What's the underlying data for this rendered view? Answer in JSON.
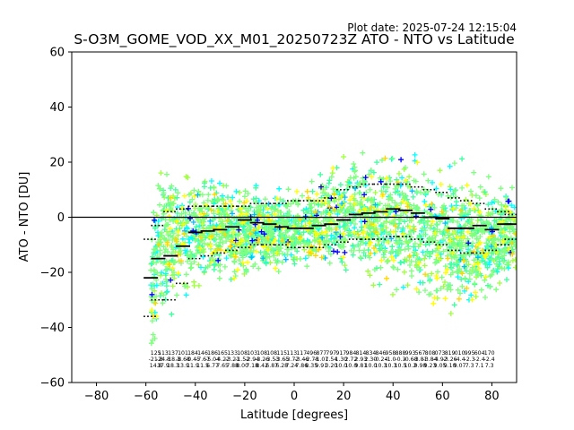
{
  "chart_data": {
    "type": "scatter",
    "title": "S-O3M_GOME_VOD_XX_M01_20250723Z ATO - NTO vs Latitude",
    "subtitle": "Plot date: 2025-07-24 12:15:04",
    "xlabel": "Latitude [degrees]",
    "ylabel": "ATO - NTO [DU]",
    "xlim": [
      -90,
      90
    ],
    "ylim": [
      -60,
      60
    ],
    "xticks": [
      -80,
      -60,
      -40,
      -20,
      0,
      20,
      40,
      60,
      80
    ],
    "yticks": [
      -60,
      -40,
      -20,
      0,
      20,
      40,
      60
    ],
    "zero_line": 0,
    "grid": false,
    "marker": "+",
    "scatter_envelope": {
      "lat": [
        -58,
        -55,
        -50,
        -45,
        -40,
        -35,
        -30,
        -25,
        -20,
        -15,
        -10,
        -5,
        0,
        5,
        10,
        15,
        20,
        25,
        30,
        35,
        40,
        45,
        50,
        55,
        60,
        65,
        70,
        75,
        80,
        85,
        90
      ],
      "upper": [
        5,
        20,
        25,
        22,
        20,
        19,
        17,
        15,
        13,
        12,
        12,
        13,
        14,
        15,
        17,
        20,
        24,
        26,
        28,
        27,
        27,
        26,
        25,
        24,
        23,
        22,
        21,
        19,
        17,
        15,
        13
      ],
      "lower": [
        -55,
        -48,
        -40,
        -35,
        -32,
        -30,
        -28,
        -26,
        -24,
        -23,
        -22,
        -22,
        -22,
        -22,
        -22,
        -22,
        -23,
        -25,
        -27,
        -29,
        -31,
        -32,
        -34,
        -36,
        -38,
        -39,
        -38,
        -36,
        -33,
        -29,
        -25
      ]
    },
    "scatter_colors": [
      "#7fff7f",
      "#3fff9f",
      "#9fff3f",
      "#00ffff",
      "#ffff00",
      "#ffd700",
      "#0000ff",
      "#00bfff"
    ],
    "mean_per_bin": [
      {
        "x": -58,
        "y": -22
      },
      {
        "x": -55,
        "y": -15
      },
      {
        "x": -50,
        "y": -14
      },
      {
        "x": -45,
        "y": -10.5
      },
      {
        "x": -40,
        "y": -5.5
      },
      {
        "x": -35,
        "y": -5
      },
      {
        "x": -30,
        "y": -4.5
      },
      {
        "x": -25,
        "y": -3.5
      },
      {
        "x": -20,
        "y": -1
      },
      {
        "x": -15,
        "y": -2
      },
      {
        "x": -10,
        "y": -2.5
      },
      {
        "x": -5,
        "y": -3.5
      },
      {
        "x": 0,
        "y": -4
      },
      {
        "x": 5,
        "y": -4
      },
      {
        "x": 10,
        "y": -3
      },
      {
        "x": 15,
        "y": -2.5
      },
      {
        "x": 20,
        "y": -1
      },
      {
        "x": 25,
        "y": 1
      },
      {
        "x": 30,
        "y": 1.5
      },
      {
        "x": 35,
        "y": 2
      },
      {
        "x": 40,
        "y": 3
      },
      {
        "x": 45,
        "y": 2.5
      },
      {
        "x": 50,
        "y": 1.5
      },
      {
        "x": 55,
        "y": 0
      },
      {
        "x": 60,
        "y": -0.5
      },
      {
        "x": 65,
        "y": -4
      },
      {
        "x": 70,
        "y": -4
      },
      {
        "x": 75,
        "y": -3
      },
      {
        "x": 80,
        "y": -4.5
      },
      {
        "x": 85,
        "y": -2.5
      },
      {
        "x": 88,
        "y": -2.5
      }
    ],
    "std_upper": [
      {
        "x": -58,
        "y": -8
      },
      {
        "x": -55,
        "y": -3
      },
      {
        "x": -50,
        "y": 2
      },
      {
        "x": -45,
        "y": 3
      },
      {
        "x": -40,
        "y": 4
      },
      {
        "x": -35,
        "y": 4
      },
      {
        "x": -30,
        "y": 4
      },
      {
        "x": -25,
        "y": 4
      },
      {
        "x": -20,
        "y": 4
      },
      {
        "x": -15,
        "y": 5
      },
      {
        "x": -10,
        "y": 5
      },
      {
        "x": -5,
        "y": 5
      },
      {
        "x": 0,
        "y": 6
      },
      {
        "x": 5,
        "y": 6
      },
      {
        "x": 10,
        "y": 6
      },
      {
        "x": 15,
        "y": 7
      },
      {
        "x": 20,
        "y": 10
      },
      {
        "x": 25,
        "y": 11
      },
      {
        "x": 30,
        "y": 12
      },
      {
        "x": 35,
        "y": 12
      },
      {
        "x": 40,
        "y": 12
      },
      {
        "x": 45,
        "y": 12
      },
      {
        "x": 50,
        "y": 11
      },
      {
        "x": 55,
        "y": 10
      },
      {
        "x": 60,
        "y": 9
      },
      {
        "x": 65,
        "y": 7
      },
      {
        "x": 70,
        "y": 6
      },
      {
        "x": 75,
        "y": 5
      },
      {
        "x": 80,
        "y": 3
      },
      {
        "x": 85,
        "y": 2
      },
      {
        "x": 88,
        "y": 1
      }
    ],
    "std_lower": [
      {
        "x": -58,
        "y": -36
      },
      {
        "x": -55,
        "y": -30
      },
      {
        "x": -50,
        "y": -30
      },
      {
        "x": -45,
        "y": -24
      },
      {
        "x": -40,
        "y": -15
      },
      {
        "x": -35,
        "y": -14
      },
      {
        "x": -30,
        "y": -13
      },
      {
        "x": -25,
        "y": -12
      },
      {
        "x": -20,
        "y": -11
      },
      {
        "x": -15,
        "y": -10
      },
      {
        "x": -10,
        "y": -10
      },
      {
        "x": -5,
        "y": -10
      },
      {
        "x": 0,
        "y": -11
      },
      {
        "x": 5,
        "y": -11
      },
      {
        "x": 10,
        "y": -11
      },
      {
        "x": 15,
        "y": -10
      },
      {
        "x": 20,
        "y": -9
      },
      {
        "x": 25,
        "y": -8
      },
      {
        "x": 30,
        "y": -8
      },
      {
        "x": 35,
        "y": -8
      },
      {
        "x": 40,
        "y": -7
      },
      {
        "x": 45,
        "y": -7
      },
      {
        "x": 50,
        "y": -8
      },
      {
        "x": 55,
        "y": -9
      },
      {
        "x": 60,
        "y": -10
      },
      {
        "x": 65,
        "y": -12
      },
      {
        "x": 70,
        "y": -13
      },
      {
        "x": 75,
        "y": -13
      },
      {
        "x": 80,
        "y": -12
      },
      {
        "x": 85,
        "y": -10
      },
      {
        "x": 88,
        "y": -8
      }
    ],
    "bin_counts": [
      {
        "x": -56,
        "n": "125",
        "mean": "-21.8",
        "std": "14.8"
      },
      {
        "x": -53,
        "n": "113",
        "mean": "-24.8",
        "std": "17.9"
      },
      {
        "x": -49,
        "n": "137",
        "mean": "-18.3",
        "std": "18.3"
      },
      {
        "x": -45,
        "n": "101",
        "mean": "-8.68",
        "std": "13.9"
      },
      {
        "x": -41,
        "n": "184",
        "mean": "-0.45",
        "std": "11.9"
      },
      {
        "x": -37,
        "n": "146",
        "mean": "-7.67",
        "std": "11.5"
      },
      {
        "x": -33,
        "n": "186",
        "mean": "-5.04",
        "std": "6.77"
      },
      {
        "x": -29,
        "n": "165",
        "mean": "-4.22",
        "std": "7.65"
      },
      {
        "x": -25,
        "n": "133",
        "mean": "-3.21",
        "std": "7.88"
      },
      {
        "x": -21,
        "n": "108",
        "mean": "-1.52",
        "std": "8.00"
      },
      {
        "x": -17,
        "n": "103",
        "mean": "-2.94",
        "std": "7.18"
      },
      {
        "x": -13,
        "n": "108",
        "mean": "-3.26",
        "std": "8.42"
      },
      {
        "x": -9,
        "n": "108",
        "mean": "-3.53",
        "std": "6.87"
      },
      {
        "x": -5,
        "n": "115",
        "mean": "-3.65",
        "std": "6.28"
      },
      {
        "x": -1,
        "n": "113",
        "mean": "-3.72",
        "std": "7.24"
      },
      {
        "x": 3,
        "n": "117",
        "mean": "-3.46",
        "std": "7.86"
      },
      {
        "x": 7,
        "n": "496",
        "mean": "-2.78",
        "std": "8.35"
      },
      {
        "x": 11,
        "n": "877",
        "mean": "-1.07",
        "std": "9.91"
      },
      {
        "x": 15,
        "n": "797",
        "mean": "1.54",
        "std": "0.20"
      },
      {
        "x": 19,
        "n": "917",
        "mean": "1.30",
        "std": "10.0"
      },
      {
        "x": 23,
        "n": "984",
        "mean": "2.72",
        "std": "10.0"
      },
      {
        "x": 27,
        "n": "814",
        "mean": "2.93",
        "std": "9.81"
      },
      {
        "x": 31,
        "n": "834",
        "mean": "2.30",
        "std": "10.0"
      },
      {
        "x": 35,
        "n": "846",
        "mean": "-0.24",
        "std": "10.3"
      },
      {
        "x": 39,
        "n": "958",
        "mean": "-1.0",
        "std": "10.3"
      },
      {
        "x": 43,
        "n": "888",
        "mean": "-0.3",
        "std": "10.5"
      },
      {
        "x": 47,
        "n": "993",
        "mean": "-0.68",
        "std": "10.2"
      },
      {
        "x": 51,
        "n": "567",
        "mean": "-3.81",
        "std": "9.98"
      },
      {
        "x": 55,
        "n": "808",
        "mean": "-3.84",
        "std": "9.23"
      },
      {
        "x": 59,
        "n": "073",
        "mean": "-4.92",
        "std": "9.05"
      },
      {
        "x": 63,
        "n": "819",
        "mean": "-3.26",
        "std": "9.10"
      },
      {
        "x": 67,
        "n": "010",
        "mean": "-4.4",
        "std": "9.07"
      },
      {
        "x": 71,
        "n": "995",
        "mean": "-2.3",
        "std": "7.3"
      },
      {
        "x": 75,
        "n": "604",
        "mean": "-2.4",
        "std": "7.1"
      },
      {
        "x": 79,
        "n": "170",
        "mean": "-2.4",
        "std": "7.3"
      }
    ]
  }
}
